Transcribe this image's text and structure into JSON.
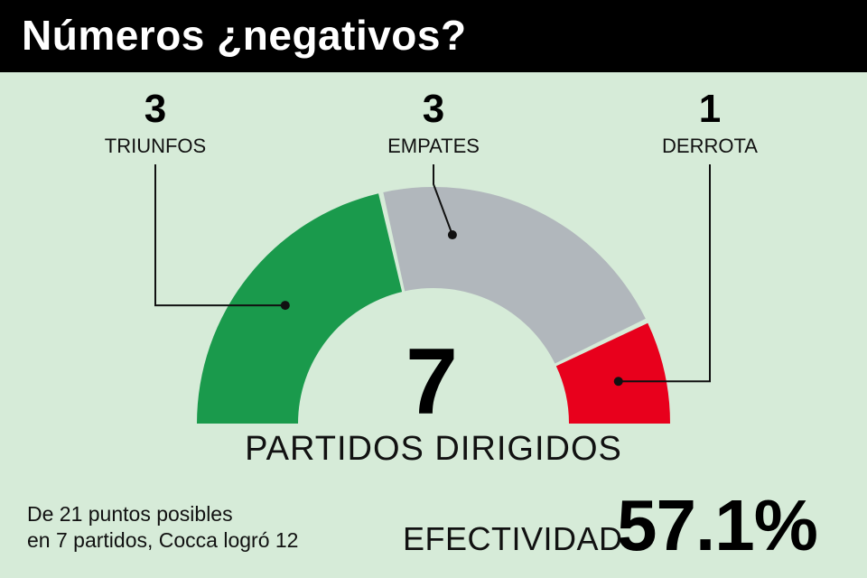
{
  "header": {
    "title": "Números ¿negativos?"
  },
  "chart_data": {
    "type": "pie",
    "variant": "semicircle",
    "categories": [
      "TRIUNFOS",
      "EMPATES",
      "DERROTA"
    ],
    "values": [
      3,
      3,
      1
    ],
    "value_labels": [
      "3",
      "3",
      "1"
    ],
    "colors": [
      "#1a9a4c",
      "#b1b7bc",
      "#e8001c"
    ],
    "total": {
      "value": "7",
      "label": "PARTIDOS DIRIGIDOS"
    }
  },
  "note": {
    "line1": "De 21 puntos posibles",
    "line2": "en 7 partidos, Cocca logró 12"
  },
  "efectividad": {
    "label": "EFECTIVIDAD",
    "value": "57.1%"
  }
}
